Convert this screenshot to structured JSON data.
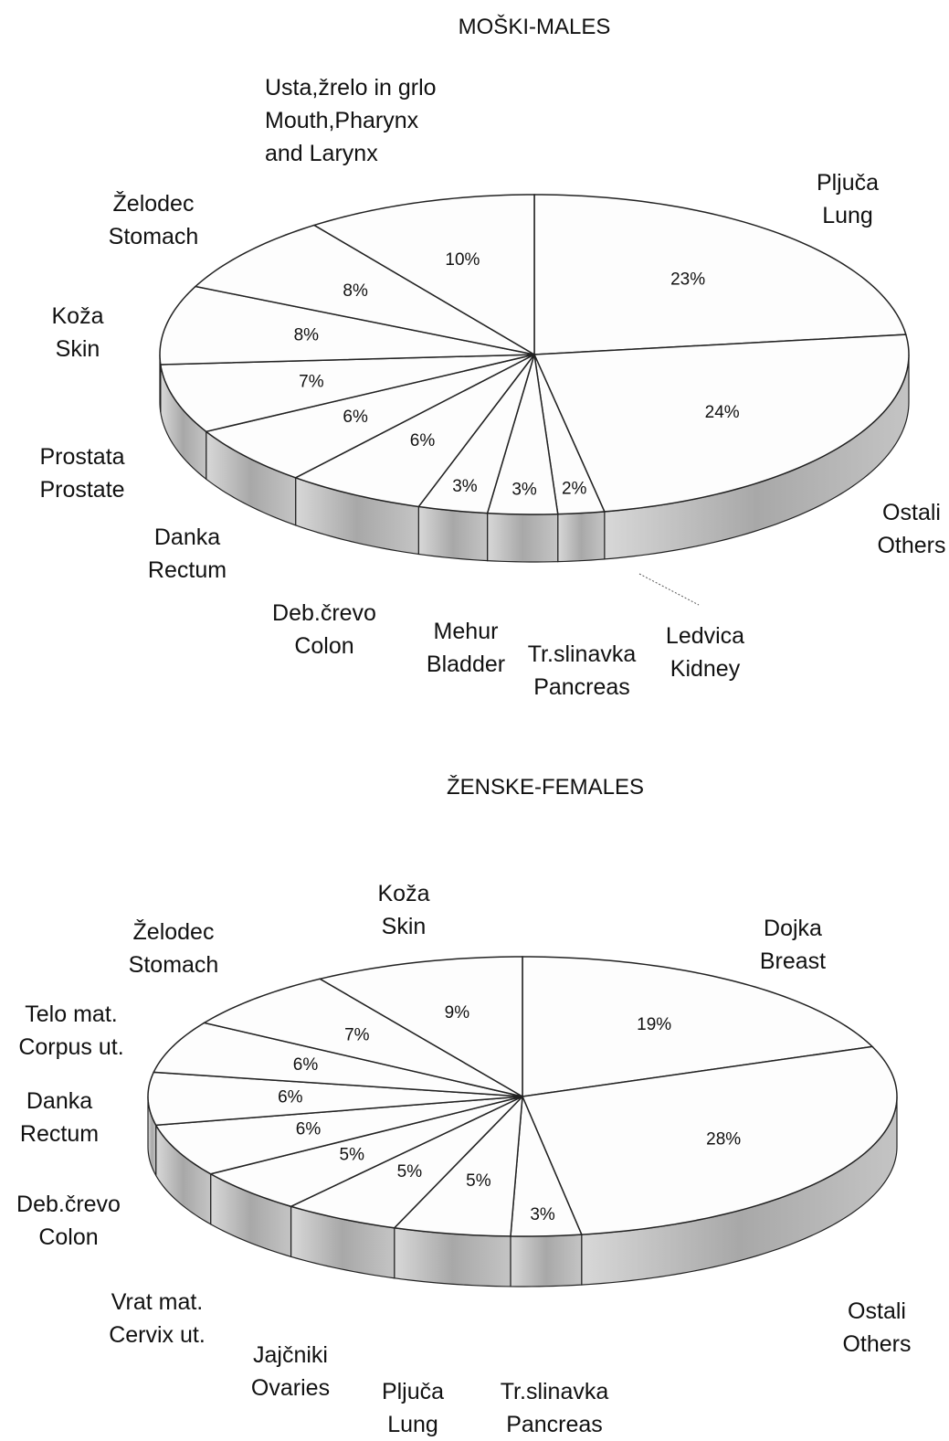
{
  "chart_data": [
    {
      "type": "pie",
      "title": "MOŠKI-MALES",
      "categories": [
        "Pljuča\nLung",
        "Ostali\nOthers",
        "Ledvica\nKidney",
        "Tr.slinavka\nPancreas",
        "Mehur\nBladder",
        "Deb.črevo\nColon",
        "Danka\nRectum",
        "Prostata\nProstate",
        "Koža\nSkin",
        "Želodec\nStomach",
        "Usta,žrelo in grlo\nMouth,Pharynx\nand Larynx"
      ],
      "values": [
        23,
        24,
        2,
        3,
        3,
        6,
        6,
        7,
        8,
        8,
        10
      ],
      "value_labels": [
        "23%",
        "24%",
        "2%",
        "3%",
        "3%",
        "6%",
        "6%",
        "7%",
        "8%",
        "8%",
        "10%"
      ]
    },
    {
      "type": "pie",
      "title": "ŽENSKE-FEMALES",
      "categories": [
        "Dojka\nBreast",
        "Ostali\nOthers",
        "Tr.slinavka\nPancreas",
        "Pljuča\nLung",
        "Jajčniki\nOvaries",
        "Vrat mat.\nCervix ut.",
        "Deb.črevo\nColon",
        "Danka\nRectum",
        "Telo mat.\nCorpus ut.",
        "Želodec\nStomach",
        "Koža\nSkin"
      ],
      "values": [
        19,
        28,
        3,
        5,
        5,
        5,
        6,
        6,
        6,
        7,
        9
      ],
      "value_labels": [
        "19%",
        "28%",
        "3%",
        "5%",
        "5%",
        "5%",
        "6%",
        "6%",
        "6%",
        "7%",
        "9%"
      ]
    }
  ]
}
